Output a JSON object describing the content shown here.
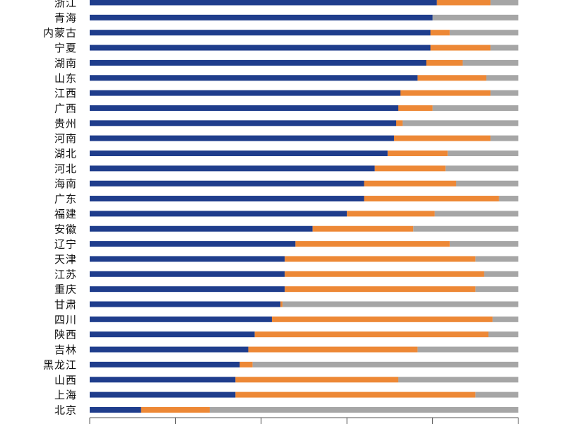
{
  "chart_data": {
    "type": "bar",
    "orientation": "horizontal",
    "stacked": true,
    "categories": [
      "浙江",
      "青海",
      "内蒙古",
      "宁夏",
      "湖南",
      "山东",
      "江西",
      "广西",
      "贵州",
      "河南",
      "湖北",
      "河北",
      "海南",
      "广东",
      "福建",
      "安徽",
      "辽宁",
      "天津",
      "江苏",
      "重庆",
      "甘肃",
      "四川",
      "陕西",
      "吉林",
      "黑龙江",
      "山西",
      "上海",
      "北京"
    ],
    "series": [
      {
        "color": "#1f3d8c",
        "values": [
          81,
          80,
          79.5,
          79.5,
          78.5,
          76.5,
          72.5,
          72,
          71.5,
          71,
          69.5,
          66.5,
          64,
          64,
          60,
          52,
          48,
          45.5,
          45.5,
          45.5,
          44.5,
          42.5,
          38.5,
          37,
          35,
          34,
          34,
          12
        ]
      },
      {
        "color": "#ed8836",
        "values": [
          12.5,
          0,
          4.5,
          14,
          8.5,
          16,
          21,
          8,
          1.5,
          22.5,
          14,
          16.5,
          21.5,
          31.5,
          20.5,
          23.5,
          36,
          44.5,
          46.5,
          44.5,
          0.5,
          51.5,
          54.5,
          39.5,
          3,
          38,
          56,
          16
        ]
      },
      {
        "color": "#a6a6a6",
        "values": [
          6.5,
          20,
          16,
          6.5,
          13,
          7.5,
          6.5,
          20,
          27,
          6.5,
          16.5,
          17,
          14.5,
          4.5,
          19.5,
          24.5,
          16,
          10,
          8,
          10,
          55,
          6,
          7,
          23.5,
          62,
          28,
          10,
          72
        ]
      }
    ],
    "xlim": [
      0,
      100
    ],
    "grid": false,
    "legend": "none"
  }
}
